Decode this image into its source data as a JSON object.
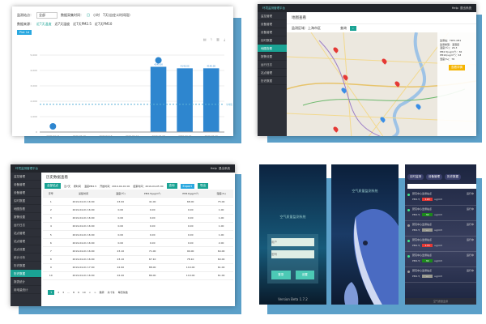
{
  "colors": {
    "accent": "#2aa8e0",
    "teal": "#1aa394",
    "bar": "#2e86cf",
    "shadow": "#3f8fbf",
    "red": "#e53935",
    "green": "#1b8a1b",
    "gray": "#9a9a90"
  },
  "chart_panel": {
    "filter_labels": [
      "监测站点：",
      "数据采集时间：",
      "数据来源："
    ],
    "site_value": "全部",
    "time_options": [
      "日",
      "小时",
      "7天(自定义时间段)"
    ],
    "source_options": [
      "近7天温度",
      "近7天湿度",
      "近7天PM2.5",
      "近7天PM10"
    ],
    "query_button": "Plot 1d",
    "toolbar_icons": [
      "data-view-icon",
      "line-icon",
      "bar-icon",
      "download-icon"
    ],
    "avg_label": "平均值",
    "chart_data": {
      "type": "bar",
      "categories": [
        "2020-07-14",
        "2020-07-15",
        "2020-07-16",
        "2020-07-17",
        "2020-07-18",
        "2020-07-19",
        "2020-07-20"
      ],
      "values": [
        0,
        0,
        0,
        0,
        4240,
        4140,
        4140
      ],
      "ylim": [
        0,
        5000
      ],
      "yticks": [
        "0",
        "1,000",
        "2,000",
        "3,000",
        "4,000",
        "5,000"
      ],
      "average": 1800,
      "data_labels": [
        "",
        "",
        "",
        "",
        "4240.00",
        "4140.00",
        "4140.00"
      ],
      "max_marker": "最大值",
      "min_marker": "最小值",
      "grid": true
    }
  },
  "map_panel": {
    "app_title": "环境监测管理平台",
    "top_links": [
      "Help",
      "退出系统"
    ],
    "sidebar": [
      "监控管理",
      "设备管理",
      "设备管理",
      "实时数据",
      "地图查看",
      "报警设置",
      "运行日志",
      "站点管理",
      "历史数据"
    ],
    "page_title": "地图查看",
    "filter_label": "监测区域：上海市区",
    "search_label": "查询",
    "info_lines": [
      "监测站：TRT1-081",
      "监测类型：温湿度",
      "温度(℃)：26.3",
      "PM2.5(ug/m³)：36",
      "PM10(ug/m³)：63",
      "湿度(%)：78"
    ],
    "info_button": "查看详情"
  },
  "table_panel": {
    "app_title": "环境监测管理平台",
    "top_links": [
      "Help",
      "退出系统"
    ],
    "sidebar": [
      "监控管理",
      "设备管理",
      "设备管理",
      "实时数据",
      "地图查看",
      "报警设置",
      "运行日志",
      "站点管理",
      "站点管理",
      "站点设置",
      "统计分析",
      "历史数据",
      "历史数据",
      "报表统计",
      "用电量统计"
    ],
    "page_title": "历史数据查看",
    "toolbar": [
      "全部站点",
      "近7天",
      "按时间",
      "温度PM2.5",
      "开始时间：2019-04-01 00",
      "结束时间：2019-04-05 00",
      "查询",
      "Export",
      "导出"
    ],
    "columns": [
      "序号",
      "采集时间",
      "温度(℃)",
      "PM2.5(μg/m³)",
      "PM10(μg/m³)",
      "湿度(%)"
    ],
    "rows": [
      [
        "1",
        "2019-04-01 16:00",
        "23.00",
        "41.00",
        "68.00",
        "75.00"
      ],
      [
        "2",
        "2019-04-01 16:00",
        "0.00",
        "0.00",
        "0.00",
        "1.00"
      ],
      [
        "3",
        "2019-04-01 16:00",
        "0.00",
        "0.00",
        "0.00",
        "1.00"
      ],
      [
        "4",
        "2019-04-01 16:00",
        "0.00",
        "0.00",
        "0.00",
        "1.00"
      ],
      [
        "5",
        "2019-04-01 16:00",
        "0.00",
        "0.00",
        "0.00",
        "1.00"
      ],
      [
        "6",
        "2019-04-01 16:00",
        "0.00",
        "0.00",
        "0.00",
        "2.00"
      ],
      [
        "7",
        "2019-04-01 16:00",
        "23.10",
        "71.00",
        "90.00",
        "64.00"
      ],
      [
        "8",
        "2019-04-01 16:00",
        "23.10",
        "67.10",
        "78.10",
        "60.00"
      ],
      [
        "9",
        "2019-04-01 17:00",
        "22.90",
        "88.00",
        "110.00",
        "61.00"
      ],
      [
        "10",
        "2019-04-01 16:00",
        "22.40",
        "86.00",
        "110.00",
        "61.00"
      ]
    ],
    "pagination": [
      "1",
      "2",
      "3",
      "...",
      "8",
      "9",
      "10",
      "<",
      ">",
      "跳转",
      "共十条",
      "每页条数"
    ]
  },
  "mobile": {
    "app_name": "空气质量监测系统",
    "username_placeholder": "用户",
    "password_placeholder": "密码",
    "login_button": "登录",
    "reset_button": "设置",
    "version": "Version Beta 1.7.2",
    "tabs": [
      "实时监测",
      "设备管理",
      "历史数据"
    ],
    "list": [
      {
        "name": "研究中心监测站点",
        "status": "运行中",
        "level": "red",
        "value": "120"
      },
      {
        "name": "研究中心监测站点",
        "status": "运行中",
        "level": "green",
        "value": "30"
      },
      {
        "name": "研究中心监测站点",
        "status": "运行中",
        "level": "gray",
        "value": "---"
      },
      {
        "name": "研究中心监测站点",
        "status": "运行中",
        "level": "red",
        "value": "170"
      },
      {
        "name": "研究中心监测站点",
        "status": "运行中",
        "level": "green",
        "value": "30"
      },
      {
        "name": "研究中心监测站点",
        "status": "运行中",
        "level": "gray",
        "value": "---"
      }
    ],
    "pm_label": "PM2.5：",
    "unit": "ug/m3",
    "footer": "空气质量监测"
  }
}
